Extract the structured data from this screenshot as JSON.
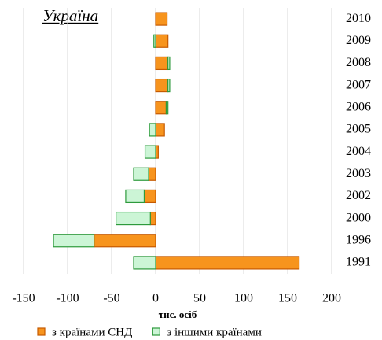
{
  "chart_data": {
    "type": "bar",
    "orientation": "horizontal",
    "stacked": true,
    "title": "Україна",
    "x_label": "тис. осіб",
    "categories": [
      "2010",
      "2009",
      "2008",
      "2007",
      "2006",
      "2005",
      "2004",
      "2003",
      "2002",
      "2000",
      "1996",
      "1991"
    ],
    "series": [
      {
        "name": "з країнами СНД",
        "color": "#f7941d",
        "values": [
          13,
          14,
          14,
          14,
          12,
          10,
          3,
          -8,
          -13,
          -6,
          -70,
          163
        ]
      },
      {
        "name": "з іншими країнами",
        "color": "#ccf5d6",
        "values": [
          0,
          -2,
          2,
          2,
          2,
          -7,
          -12,
          -17,
          -21,
          -39,
          -46,
          -25
        ]
      }
    ],
    "xlim": [
      -150,
      200
    ],
    "xticks": [
      -150,
      -100,
      -50,
      0,
      50,
      100,
      150,
      200
    ],
    "grid": true,
    "legend": "bottom"
  }
}
